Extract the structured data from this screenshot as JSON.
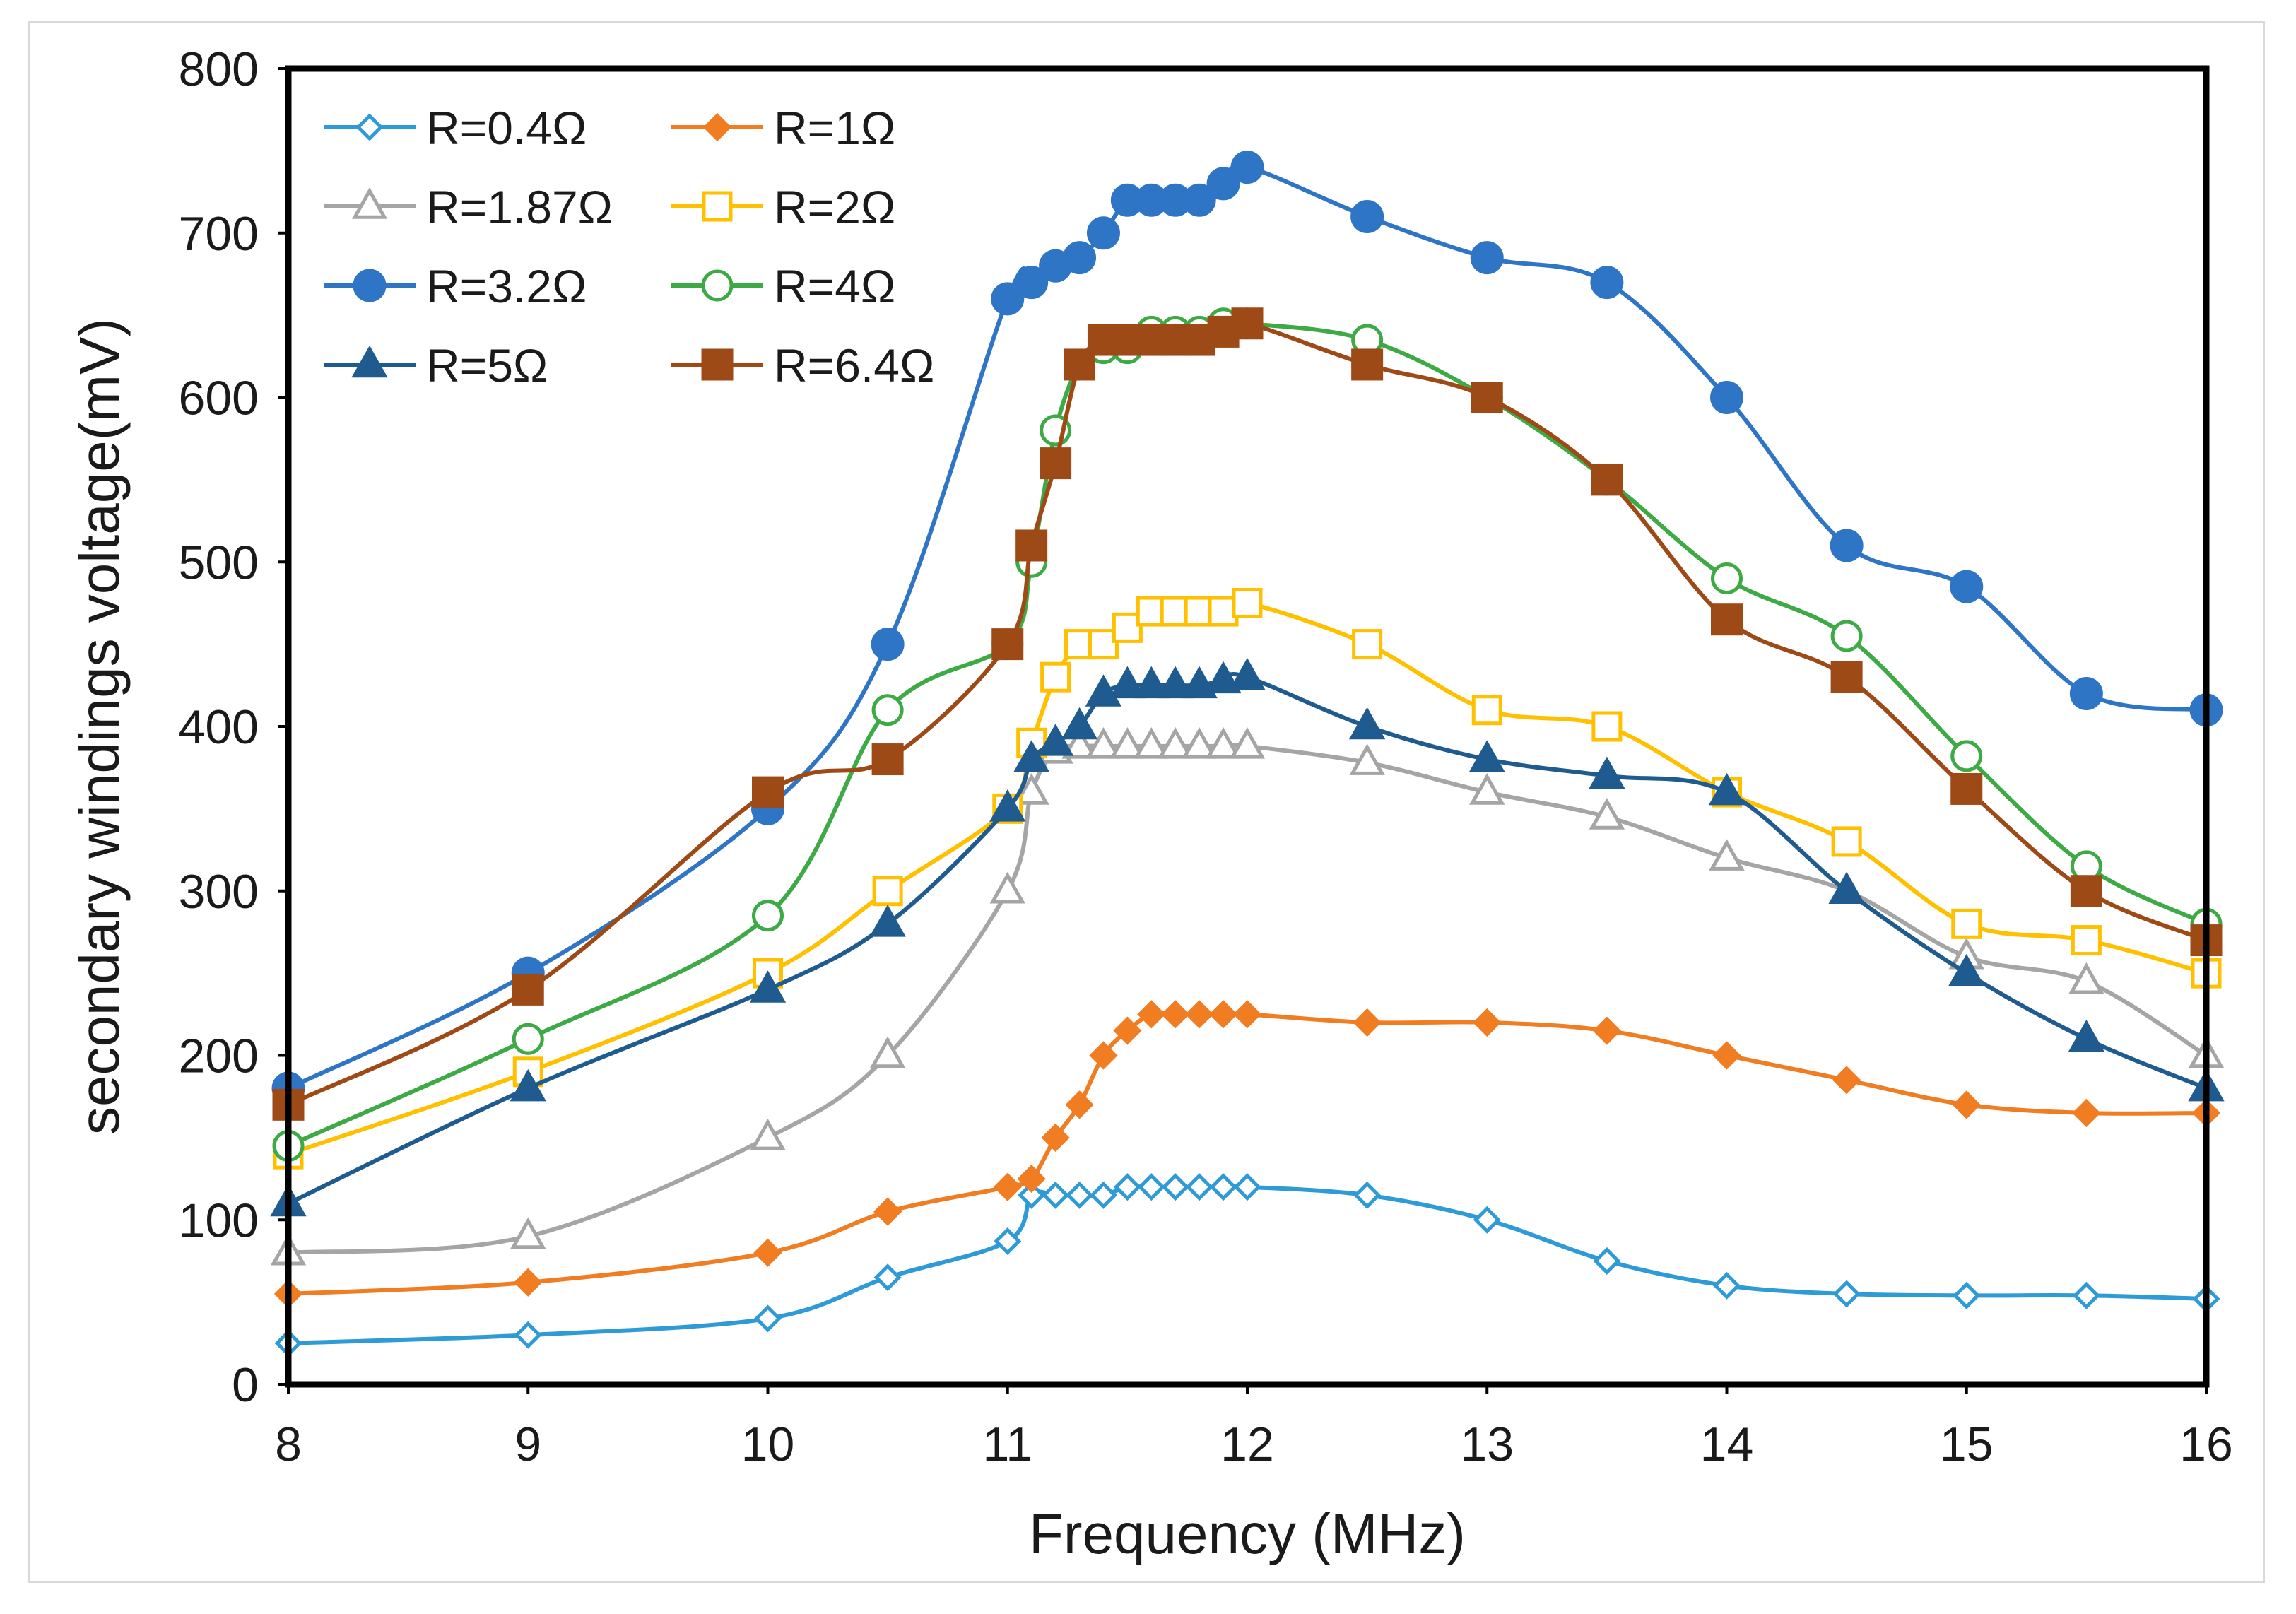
{
  "chart_data": {
    "type": "line",
    "title": "",
    "xlabel": "Frequency (MHz)",
    "ylabel": "secondary windings voltage(mV)",
    "xlim": [
      8,
      16
    ],
    "ylim": [
      0,
      800
    ],
    "xticks": [
      8,
      9,
      10,
      11,
      12,
      13,
      14,
      15,
      16
    ],
    "yticks": [
      0,
      100,
      200,
      300,
      400,
      500,
      600,
      700,
      800
    ],
    "grid": false,
    "legend_position": "top-left",
    "series": [
      {
        "name": "R=0.4Ω",
        "color": "#2e9bd6",
        "marker": "diamond",
        "filled": false,
        "x": [
          8,
          9,
          10,
          10.5,
          11,
          11.1,
          11.2,
          11.3,
          11.4,
          11.5,
          11.6,
          11.7,
          11.8,
          11.9,
          12,
          12.5,
          13,
          13.5,
          14,
          14.5,
          15,
          15.5,
          16
        ],
        "y": [
          25,
          30,
          40,
          65,
          87,
          115,
          115,
          115,
          115,
          120,
          120,
          120,
          120,
          120,
          120,
          115,
          100,
          75,
          60,
          55,
          54,
          54,
          52
        ]
      },
      {
        "name": "R=1Ω",
        "color": "#f07d22",
        "marker": "diamond",
        "filled": true,
        "x": [
          8,
          9,
          10,
          10.5,
          11,
          11.1,
          11.2,
          11.3,
          11.4,
          11.5,
          11.6,
          11.7,
          11.8,
          11.9,
          12,
          12.5,
          13,
          13.5,
          14,
          14.5,
          15,
          15.5,
          16
        ],
        "y": [
          55,
          62,
          80,
          105,
          120,
          125,
          150,
          170,
          200,
          215,
          225,
          225,
          225,
          225,
          225,
          220,
          220,
          215,
          200,
          185,
          170,
          165,
          165
        ]
      },
      {
        "name": "R=1.87Ω",
        "color": "#a5a5a5",
        "marker": "triangle",
        "filled": false,
        "x": [
          8,
          9,
          10,
          10.5,
          11,
          11.1,
          11.2,
          11.3,
          11.4,
          11.5,
          11.6,
          11.7,
          11.8,
          11.9,
          12,
          12.5,
          13,
          13.5,
          14,
          14.5,
          15,
          15.5,
          16
        ],
        "y": [
          80,
          90,
          150,
          200,
          300,
          360,
          385,
          388,
          388,
          388,
          388,
          388,
          388,
          388,
          388,
          378,
          360,
          345,
          320,
          300,
          260,
          245,
          200
        ]
      },
      {
        "name": "R=2Ω",
        "color": "#ffc000",
        "marker": "square",
        "filled": false,
        "x": [
          8,
          9,
          10,
          10.5,
          11,
          11.1,
          11.2,
          11.3,
          11.4,
          11.5,
          11.6,
          11.7,
          11.8,
          11.9,
          12,
          12.5,
          13,
          13.5,
          14,
          14.5,
          15,
          15.5,
          16
        ],
        "y": [
          140,
          190,
          250,
          300,
          350,
          390,
          430,
          450,
          450,
          460,
          470,
          470,
          470,
          470,
          475,
          450,
          410,
          400,
          360,
          330,
          280,
          270,
          250
        ]
      },
      {
        "name": "R=3.2Ω",
        "color": "#2f75c5",
        "marker": "circle",
        "filled": true,
        "x": [
          8,
          9,
          10,
          10.5,
          11,
          11.1,
          11.2,
          11.3,
          11.4,
          11.5,
          11.6,
          11.7,
          11.8,
          11.9,
          12,
          12.5,
          13,
          13.5,
          14,
          14.5,
          15,
          15.5,
          16
        ],
        "y": [
          180,
          250,
          350,
          450,
          660,
          670,
          680,
          685,
          700,
          720,
          720,
          720,
          720,
          730,
          740,
          710,
          685,
          670,
          600,
          510,
          485,
          420,
          410
        ]
      },
      {
        "name": "R=4Ω",
        "color": "#3daa46",
        "marker": "circle",
        "filled": false,
        "x": [
          8,
          9,
          10,
          10.5,
          11,
          11.1,
          11.2,
          11.3,
          11.4,
          11.5,
          11.6,
          11.7,
          11.8,
          11.9,
          12,
          12.5,
          13,
          13.5,
          14,
          14.5,
          15,
          15.5,
          16
        ],
        "y": [
          145,
          210,
          285,
          410,
          450,
          500,
          580,
          620,
          630,
          630,
          640,
          640,
          640,
          645,
          645,
          635,
          600,
          550,
          490,
          455,
          382,
          315,
          280
        ]
      },
      {
        "name": "R=5Ω",
        "color": "#1f5b8e",
        "marker": "triangle",
        "filled": true,
        "x": [
          8,
          9,
          10,
          10.5,
          11,
          11.1,
          11.2,
          11.3,
          11.4,
          11.5,
          11.6,
          11.7,
          11.8,
          11.9,
          12,
          12.5,
          13,
          13.5,
          14,
          14.5,
          15,
          15.5,
          16
        ],
        "y": [
          110,
          180,
          240,
          280,
          350,
          380,
          390,
          400,
          420,
          425,
          425,
          425,
          425,
          428,
          430,
          400,
          380,
          370,
          360,
          300,
          250,
          210,
          180
        ]
      },
      {
        "name": "R=6.4Ω",
        "color": "#9e4a16",
        "marker": "square",
        "filled": true,
        "x": [
          8,
          9,
          10,
          10.5,
          11,
          11.1,
          11.2,
          11.3,
          11.4,
          11.5,
          11.6,
          11.7,
          11.8,
          11.9,
          12,
          12.5,
          13,
          13.5,
          14,
          14.5,
          15,
          15.5,
          16
        ],
        "y": [
          170,
          240,
          360,
          380,
          450,
          510,
          560,
          620,
          635,
          635,
          635,
          635,
          635,
          640,
          645,
          620,
          600,
          550,
          465,
          430,
          362,
          300,
          270
        ]
      }
    ]
  }
}
